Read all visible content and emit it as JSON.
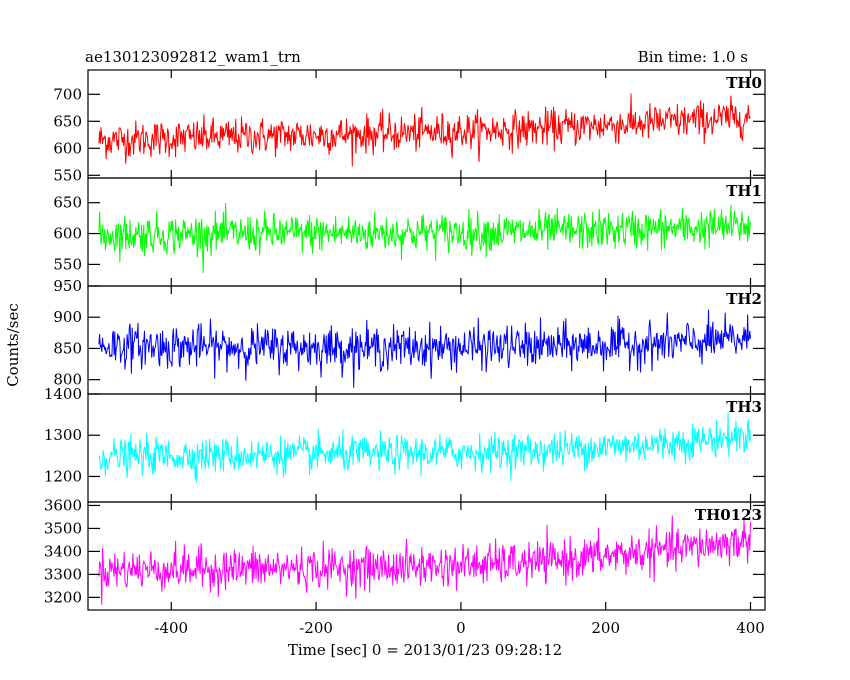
{
  "header": {
    "title": "ae130123092812_wam1_trn",
    "bin_time": "Bin time: 1.0 s"
  },
  "chart_data": {
    "type": "line",
    "title": "ae130123092812_wam1_trn",
    "subtitle": "Bin time: 1.0 s",
    "xlabel": "Time [sec] 0 = 2013/01/23 09:28:12",
    "ylabel": "Counts/sec",
    "xlim": [
      -515,
      420
    ],
    "x_ticks": [
      -400,
      -200,
      0,
      200,
      400
    ],
    "x_range": [
      -500,
      400
    ],
    "bin_time": 1.0,
    "grid": false,
    "panels": [
      {
        "name": "TH0",
        "color": "#ff0000",
        "ylim": [
          545,
          745
        ],
        "y_ticks": [
          550,
          600,
          650,
          700
        ],
        "trend": [
          [
            -500,
            615
          ],
          [
            -300,
            622
          ],
          [
            -100,
            627
          ],
          [
            100,
            636
          ],
          [
            300,
            650
          ],
          [
            400,
            658
          ]
        ],
        "noise_amplitude": 38
      },
      {
        "name": "TH1",
        "color": "#00ff00",
        "ylim": [
          515,
          690
        ],
        "y_ticks": [
          550,
          600,
          650
        ],
        "trend": [
          [
            -500,
            598
          ],
          [
            -300,
            600
          ],
          [
            -100,
            601
          ],
          [
            100,
            603
          ],
          [
            300,
            608
          ],
          [
            400,
            612
          ]
        ],
        "noise_amplitude": 35
      },
      {
        "name": "TH2",
        "color": "#0000ff",
        "ylim": [
          777,
          950
        ],
        "y_ticks": [
          800,
          850,
          900,
          950
        ],
        "trend": [
          [
            -500,
            855
          ],
          [
            -300,
            852
          ],
          [
            -100,
            851
          ],
          [
            100,
            853
          ],
          [
            300,
            858
          ],
          [
            400,
            866
          ]
        ],
        "noise_amplitude": 38
      },
      {
        "name": "TH3",
        "color": "#00ffff",
        "ylim": [
          1138,
          1400
        ],
        "y_ticks": [
          1200,
          1300,
          1400
        ],
        "trend": [
          [
            -500,
            1248
          ],
          [
            -300,
            1252
          ],
          [
            -100,
            1255
          ],
          [
            100,
            1262
          ],
          [
            300,
            1282
          ],
          [
            400,
            1300
          ]
        ],
        "noise_amplitude": 48
      },
      {
        "name": "TH0123",
        "color": "#ff00ff",
        "ylim": [
          3145,
          3615
        ],
        "y_ticks": [
          3200,
          3300,
          3400,
          3500,
          3600
        ],
        "trend": [
          [
            -500,
            3320
          ],
          [
            -300,
            3325
          ],
          [
            -100,
            3330
          ],
          [
            100,
            3350
          ],
          [
            300,
            3410
          ],
          [
            400,
            3450
          ]
        ],
        "noise_amplitude": 100
      }
    ]
  }
}
